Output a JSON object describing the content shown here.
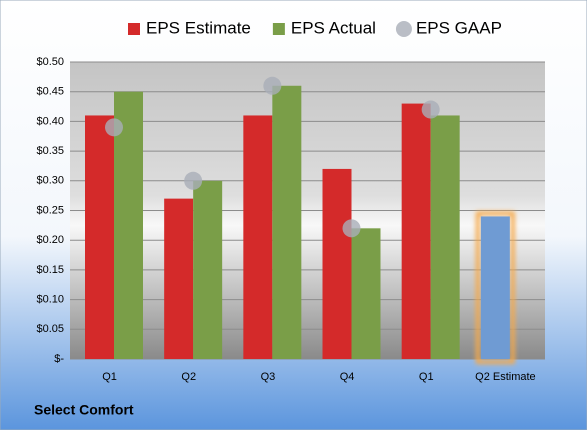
{
  "chart_data": {
    "type": "bar",
    "title": "Select Comfort",
    "categories": [
      "Q1",
      "Q2",
      "Q3",
      "Q4",
      "Q1",
      "Q2 Estimate"
    ],
    "series": [
      {
        "name": "EPS Estimate",
        "color": "#d42a2a",
        "values": [
          0.41,
          0.27,
          0.41,
          0.32,
          0.43,
          0.24
        ],
        "highlight": {
          "index": 5,
          "color": "#6f9bd3",
          "glow": "#f6a94a"
        }
      },
      {
        "name": "EPS Actual",
        "color": "#7a9e48",
        "values": [
          0.45,
          0.3,
          0.46,
          0.22,
          0.41,
          null
        ]
      },
      {
        "name": "EPS GAAP",
        "color": "#a9aeb8",
        "marker": "circle",
        "values": [
          0.39,
          0.3,
          0.46,
          0.22,
          0.42,
          null
        ]
      }
    ],
    "ylim": [
      0,
      0.5
    ],
    "yticks": [
      {
        "value": 0,
        "label": "$-"
      },
      {
        "value": 0.05,
        "label": "$0.05"
      },
      {
        "value": 0.1,
        "label": "$0.10"
      },
      {
        "value": 0.15,
        "label": "$0.15"
      },
      {
        "value": 0.2,
        "label": "$0.20"
      },
      {
        "value": 0.25,
        "label": "$0.25"
      },
      {
        "value": 0.3,
        "label": "$0.30"
      },
      {
        "value": 0.35,
        "label": "$0.35"
      },
      {
        "value": 0.4,
        "label": "$0.40"
      },
      {
        "value": 0.45,
        "label": "$0.45"
      },
      {
        "value": 0.5,
        "label": "$0.50"
      }
    ],
    "grid": true
  }
}
